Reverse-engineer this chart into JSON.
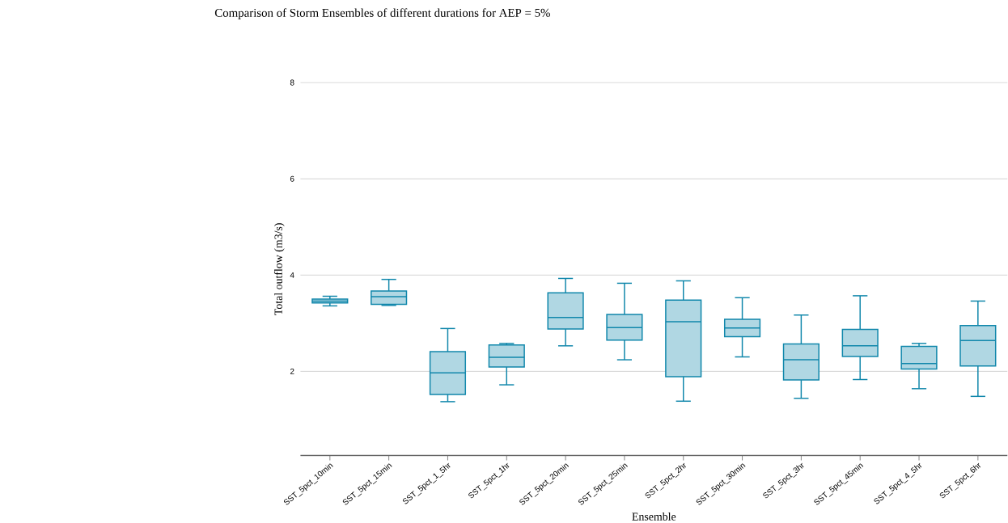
{
  "chart_data": {
    "type": "box",
    "title": "Comparison of Storm Ensembles of different durations for AEP = 5%",
    "xlabel": "Ensemble",
    "ylabel": "Total outflow (m3/s)",
    "categories": [
      "SST_5pct_10min",
      "SST_5pct_15min",
      "SST_5pct_1_5hr",
      "SST_5pct_1hr",
      "SST_5pct_20min",
      "SST_5pct_25min",
      "SST_5pct_2hr",
      "SST_5pct_30min",
      "SST_5pct_3hr",
      "SST_5pct_45min",
      "SST_5pct_4_5hr",
      "SST_5pct_6hr"
    ],
    "ylim": [
      0.25,
      8
    ],
    "yticks": [
      2,
      4,
      6,
      8
    ],
    "grid": "y",
    "series": [
      {
        "color": "#1087ab",
        "boxes": [
          {
            "low": 3.36,
            "q1": 3.42,
            "median": 3.46,
            "q3": 3.5,
            "high": 3.56
          },
          {
            "low": 3.37,
            "q1": 3.39,
            "median": 3.55,
            "q3": 3.67,
            "high": 3.91
          },
          {
            "low": 1.37,
            "q1": 1.52,
            "median": 1.97,
            "q3": 2.41,
            "high": 2.89
          },
          {
            "low": 1.72,
            "q1": 2.09,
            "median": 2.29,
            "q3": 2.55,
            "high": 2.58
          },
          {
            "low": 2.53,
            "q1": 2.88,
            "median": 3.12,
            "q3": 3.63,
            "high": 3.93
          },
          {
            "low": 2.24,
            "q1": 2.65,
            "median": 2.91,
            "q3": 3.18,
            "high": 3.83
          },
          {
            "low": 1.38,
            "q1": 1.89,
            "median": 3.03,
            "q3": 3.48,
            "high": 3.88
          },
          {
            "low": 2.3,
            "q1": 2.72,
            "median": 2.9,
            "q3": 3.08,
            "high": 3.53
          },
          {
            "low": 1.44,
            "q1": 1.82,
            "median": 2.24,
            "q3": 2.57,
            "high": 3.17
          },
          {
            "low": 1.83,
            "q1": 2.31,
            "median": 2.53,
            "q3": 2.87,
            "high": 3.57
          },
          {
            "low": 1.64,
            "q1": 2.05,
            "median": 2.16,
            "q3": 2.52,
            "high": 2.58
          },
          {
            "low": 1.48,
            "q1": 2.11,
            "median": 2.64,
            "q3": 2.95,
            "high": 3.46
          }
        ]
      }
    ]
  }
}
